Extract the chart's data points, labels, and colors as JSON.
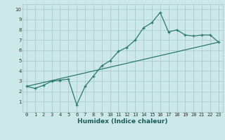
{
  "xlabel": "Humidex (Indice chaleur)",
  "bg_color": "#cce8e8",
  "grid_color": "#aacccc",
  "line_color": "#2a7a6a",
  "xlim": [
    -0.5,
    23.5
  ],
  "ylim": [
    0,
    10.5
  ],
  "xtick_vals": [
    0,
    1,
    2,
    3,
    4,
    5,
    6,
    7,
    8,
    9,
    10,
    11,
    12,
    13,
    14,
    15,
    16,
    17,
    18,
    19,
    20,
    21,
    22,
    23
  ],
  "ytick_vals": [
    1,
    2,
    3,
    4,
    5,
    6,
    7,
    8,
    9,
    10
  ],
  "curve1_x": [
    0,
    1,
    2,
    3,
    4,
    5,
    6,
    7,
    8,
    9,
    10,
    11,
    12,
    13,
    14,
    15,
    16,
    17,
    18,
    19,
    20,
    21,
    22,
    23
  ],
  "curve1_y": [
    2.5,
    2.3,
    2.6,
    3.0,
    3.1,
    3.2,
    0.7,
    2.5,
    3.5,
    4.5,
    5.0,
    5.9,
    6.3,
    7.0,
    8.2,
    8.7,
    9.7,
    7.8,
    8.0,
    7.5,
    7.4,
    7.5,
    7.5,
    6.8
  ],
  "curve2_x": [
    0,
    23
  ],
  "curve2_y": [
    2.5,
    6.8
  ],
  "tick_fontsize": 5.0,
  "xlabel_fontsize": 6.5
}
